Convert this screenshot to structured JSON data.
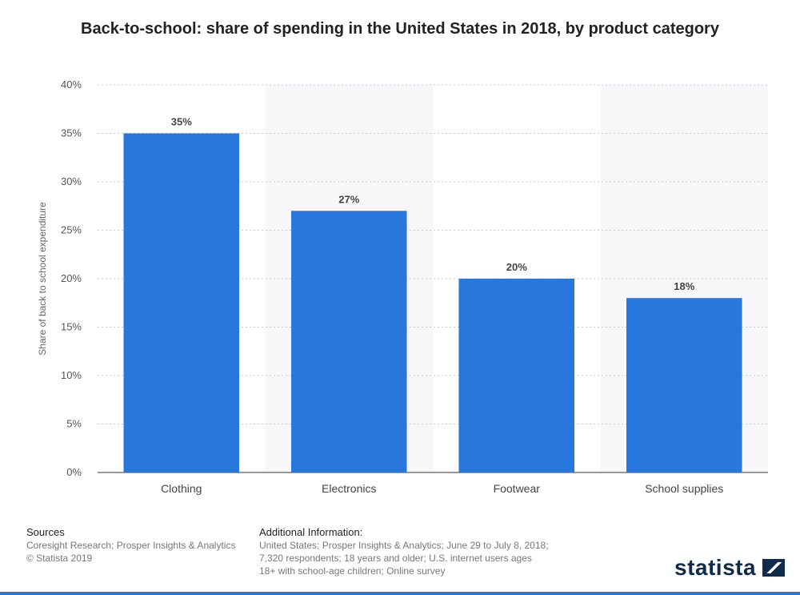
{
  "title": "Back-to-school: share of spending in the United States in 2018, by product category",
  "chart_data": {
    "type": "bar",
    "title": "Back-to-school: share of spending in the United States in 2018, by product category",
    "categories": [
      "Clothing",
      "Electronics",
      "Footwear",
      "School supplies"
    ],
    "values": [
      35,
      27,
      20,
      18
    ],
    "value_labels": [
      "35%",
      "27%",
      "20%",
      "18%"
    ],
    "ylabel": "Share of back to school expenditure",
    "xlabel": "",
    "ylim": [
      0,
      40
    ],
    "yticks": [
      0,
      5,
      10,
      15,
      20,
      25,
      30,
      35,
      40
    ],
    "ytick_labels": [
      "0%",
      "5%",
      "10%",
      "15%",
      "20%",
      "25%",
      "30%",
      "35%",
      "40%"
    ],
    "grid": true,
    "bar_color": "#2777dd"
  },
  "footer": {
    "sources_heading": "Sources",
    "sources_line1": "Coresight Research; Prosper Insights & Analytics",
    "sources_line2": "© Statista 2019",
    "info_heading": "Additional Information:",
    "info_line1": "United States; Prosper Insights & Analytics; June 29 to July 8, 2018;",
    "info_line2": "7,320 respondents; 18 years and older; U.S. internet users ages",
    "info_line3": "18+ with school-age children; Online survey",
    "logo_text": "statista"
  },
  "colors": {
    "accent": "#2777dd",
    "brand": "#0f2a4a"
  }
}
